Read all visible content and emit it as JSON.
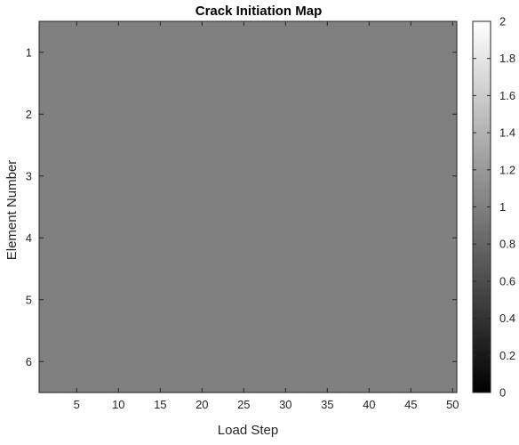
{
  "chart_data": {
    "type": "heatmap",
    "title": "Crack Initiation Map",
    "xlabel": "Load Step",
    "ylabel": "Element Number",
    "x": {
      "range": [
        0.5,
        50.5
      ],
      "ticks": [
        5,
        10,
        15,
        20,
        25,
        30,
        35,
        40,
        45,
        50
      ]
    },
    "y": {
      "range": [
        0.5,
        6.5
      ],
      "ticks": [
        1,
        2,
        3,
        4,
        5,
        6
      ],
      "direction": "reverse"
    },
    "rows": 6,
    "cols": 50,
    "uniform_value": 1,
    "colormap": "gray",
    "colorbar": {
      "range": [
        0,
        2
      ],
      "ticks": [
        0,
        0.2,
        0.4,
        0.6,
        0.8,
        1,
        1.2,
        1.4,
        1.6,
        1.8,
        2
      ],
      "placement": "right"
    },
    "grid": false
  }
}
